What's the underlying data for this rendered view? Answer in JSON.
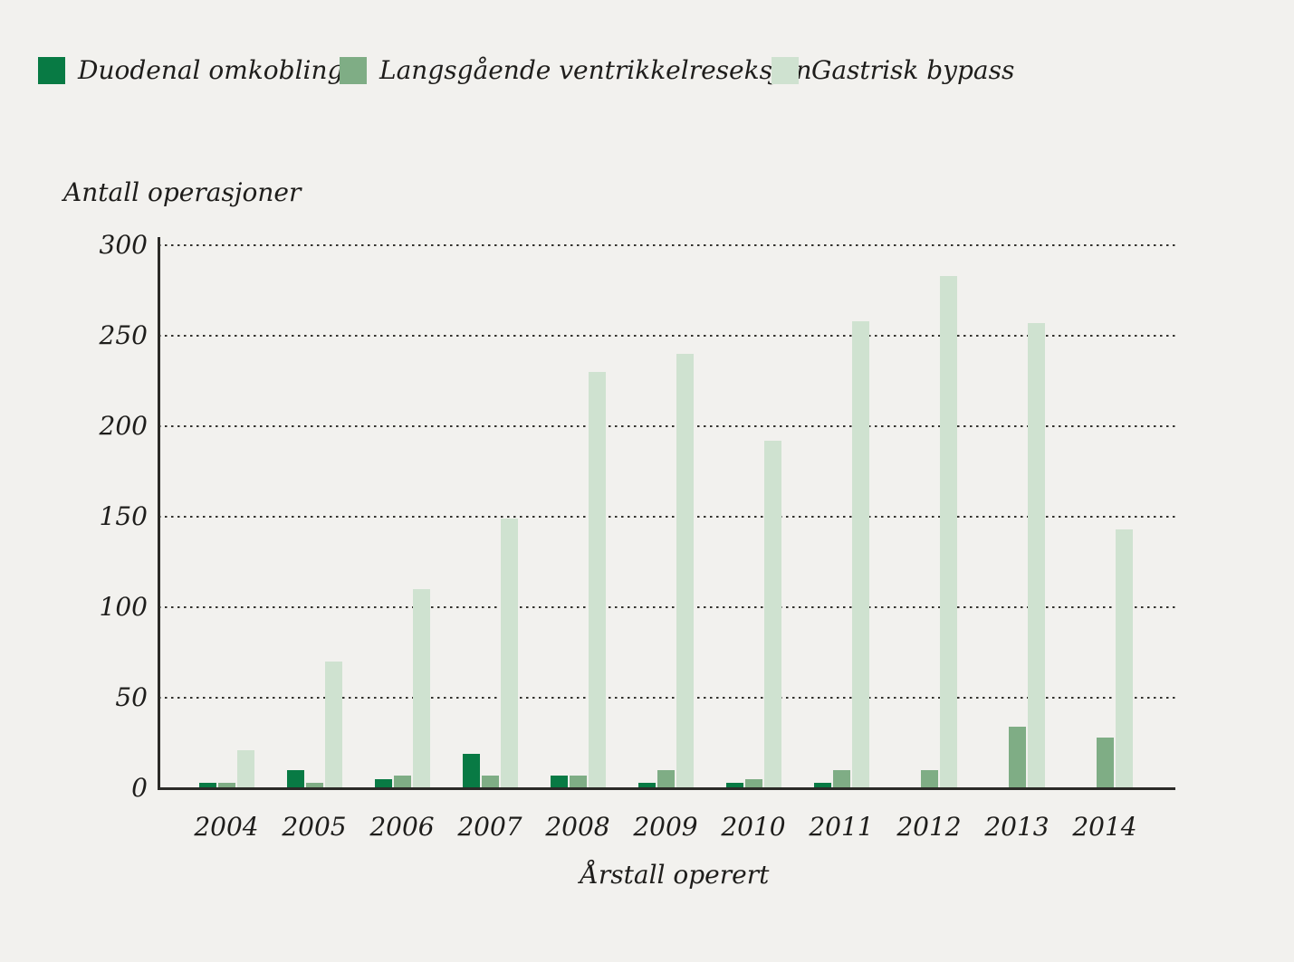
{
  "colors": {
    "background": "#f2f1ee",
    "text": "#1e1d1b",
    "axis": "#2b2a27",
    "series_dark_green": "#087a44",
    "series_medium_green": "#7fad85",
    "series_light_green": "#cfe2d0"
  },
  "chart_data": {
    "type": "bar",
    "title": "",
    "ylabel": "Antall operasjoner",
    "xlabel": "Årstall operert",
    "categories": [
      "2004",
      "2005",
      "2006",
      "2007",
      "2008",
      "2009",
      "2010",
      "2011",
      "2012",
      "2013",
      "2014"
    ],
    "series": [
      {
        "name": "Duodenal omkobling",
        "color": "#087a44",
        "values": [
          3,
          10,
          5,
          19,
          7,
          3,
          3,
          3,
          0,
          0,
          0
        ]
      },
      {
        "name": "Langsgående ventrikkelreseksjon",
        "color": "#7fad85",
        "values": [
          3,
          3,
          7,
          7,
          7,
          10,
          5,
          10,
          10,
          34,
          28
        ]
      },
      {
        "name": "Gastrisk bypass",
        "color": "#cfe2d0",
        "values": [
          21,
          70,
          110,
          149,
          230,
          240,
          192,
          258,
          283,
          257,
          143
        ]
      }
    ],
    "ylim": [
      0,
      300
    ],
    "yticks": [
      0,
      50,
      100,
      150,
      200,
      250,
      300
    ],
    "grid": "horizontal-dotted",
    "legend_position": "top-left"
  }
}
